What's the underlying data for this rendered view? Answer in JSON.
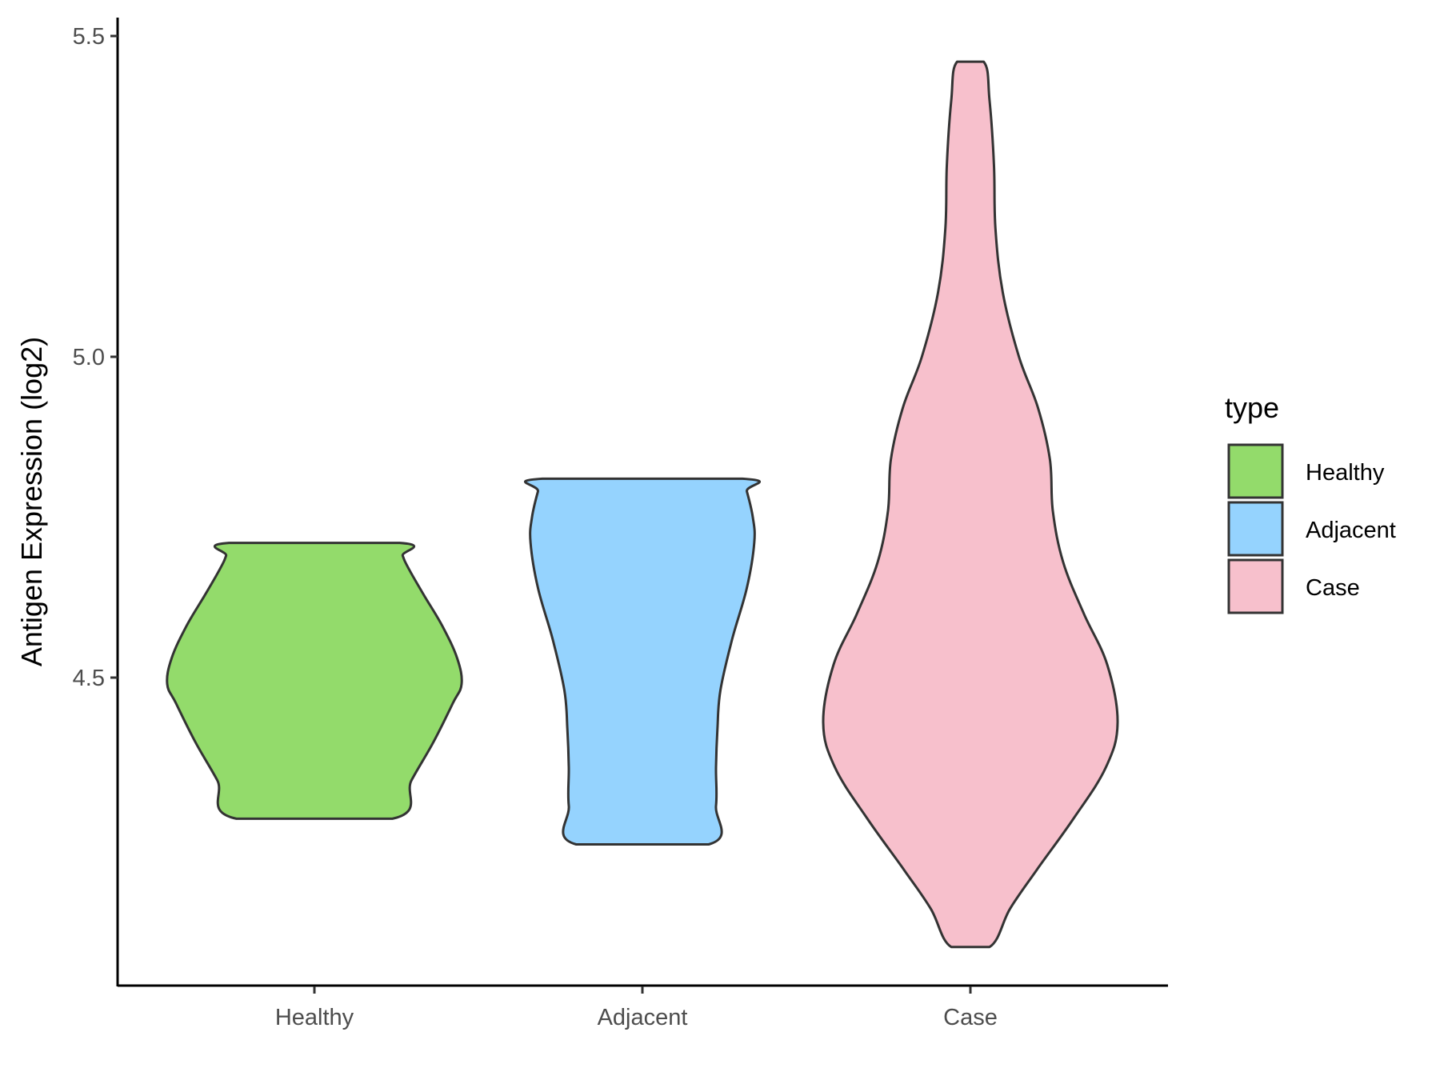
{
  "chart_data": {
    "type": "violin",
    "title": "",
    "xlabel": "",
    "ylabel": "Antigen Expression (log2)",
    "ylim": [
      4.03,
      5.54
    ],
    "y_ticks": [
      4.5,
      5.0,
      5.5
    ],
    "y_tick_labels": [
      "4.5",
      "5.0",
      "5.5"
    ],
    "categories": [
      "Healthy",
      "Adjacent",
      "Case"
    ],
    "legend": {
      "title": "type",
      "position": "right",
      "entries": [
        "Healthy",
        "Adjacent",
        "Case"
      ]
    },
    "grid": false,
    "series": [
      {
        "name": "Healthy",
        "color": "#93DB6B",
        "min": 4.28,
        "max": 4.71,
        "profile": [
          [
            4.28,
            0.53
          ],
          [
            4.34,
            0.66
          ],
          [
            4.4,
            0.81
          ],
          [
            4.46,
            0.94
          ],
          [
            4.49,
            1.0
          ],
          [
            4.53,
            0.97
          ],
          [
            4.58,
            0.87
          ],
          [
            4.63,
            0.74
          ],
          [
            4.67,
            0.64
          ],
          [
            4.69,
            0.6
          ],
          [
            4.71,
            0.58
          ]
        ]
      },
      {
        "name": "Adjacent",
        "color": "#95D3FE",
        "min": 4.24,
        "max": 4.81,
        "profile": [
          [
            4.24,
            0.45
          ],
          [
            4.3,
            0.5
          ],
          [
            4.36,
            0.5
          ],
          [
            4.42,
            0.51
          ],
          [
            4.48,
            0.53
          ],
          [
            4.56,
            0.61
          ],
          [
            4.64,
            0.71
          ],
          [
            4.71,
            0.76
          ],
          [
            4.75,
            0.75
          ],
          [
            4.79,
            0.71
          ],
          [
            4.81,
            0.68
          ]
        ]
      },
      {
        "name": "Case",
        "color": "#F7C0CC",
        "min": 4.08,
        "max": 5.46,
        "profile": [
          [
            4.08,
            0.13
          ],
          [
            4.14,
            0.27
          ],
          [
            4.2,
            0.45
          ],
          [
            4.28,
            0.7
          ],
          [
            4.36,
            0.92
          ],
          [
            4.43,
            1.0
          ],
          [
            4.52,
            0.93
          ],
          [
            4.6,
            0.77
          ],
          [
            4.68,
            0.63
          ],
          [
            4.76,
            0.56
          ],
          [
            4.84,
            0.54
          ],
          [
            4.92,
            0.46
          ],
          [
            5.0,
            0.33
          ],
          [
            5.1,
            0.22
          ],
          [
            5.2,
            0.17
          ],
          [
            5.3,
            0.16
          ],
          [
            5.4,
            0.13
          ],
          [
            5.46,
            0.09
          ]
        ]
      }
    ]
  }
}
